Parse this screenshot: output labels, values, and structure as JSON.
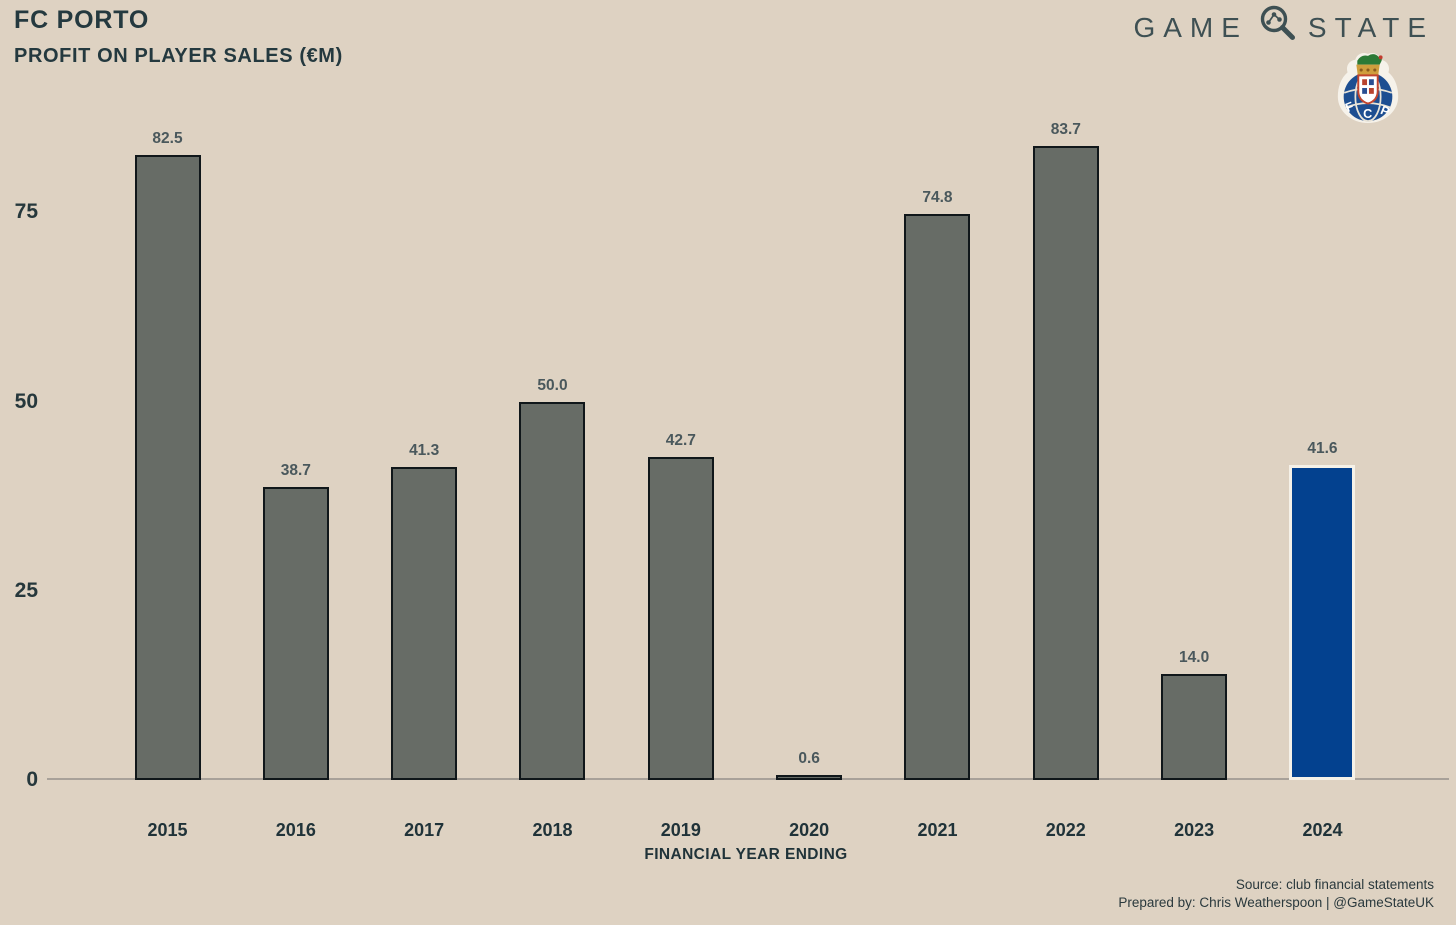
{
  "header": {
    "title": "FC PORTO",
    "subtitle": "PROFIT ON PLAYER SALES (€M)",
    "brand": {
      "word1": "GAME",
      "word2": "STATE",
      "icon": "magnifier-scatter-icon"
    },
    "club_badge": "fc-porto-crest"
  },
  "chart_data": {
    "type": "bar",
    "title": "PROFIT ON PLAYER SALES (€M)",
    "categories": [
      "2015",
      "2016",
      "2017",
      "2018",
      "2019",
      "2020",
      "2021",
      "2022",
      "2023",
      "2024"
    ],
    "values": [
      82.5,
      38.7,
      41.3,
      50.0,
      42.7,
      0.6,
      74.8,
      83.7,
      14.0,
      41.6
    ],
    "value_labels": [
      "82.5",
      "38.7",
      "41.3",
      "50.0",
      "42.7",
      "0.6",
      "74.8",
      "83.7",
      "14.0",
      "41.6"
    ],
    "xlabel": "FINANCIAL YEAR ENDING",
    "ylabel": "",
    "ylim": [
      0,
      90
    ],
    "yticks": [
      0,
      25,
      50,
      75
    ],
    "grid": false,
    "legend": false,
    "bar_color_default": "#676c66",
    "bar_color_highlight": "#03418f",
    "highlight_index": 9
  },
  "footer": {
    "source": "Source: club financial statements",
    "prepared_by": "Prepared by: Chris Weatherspoon | @GameStateUK"
  }
}
